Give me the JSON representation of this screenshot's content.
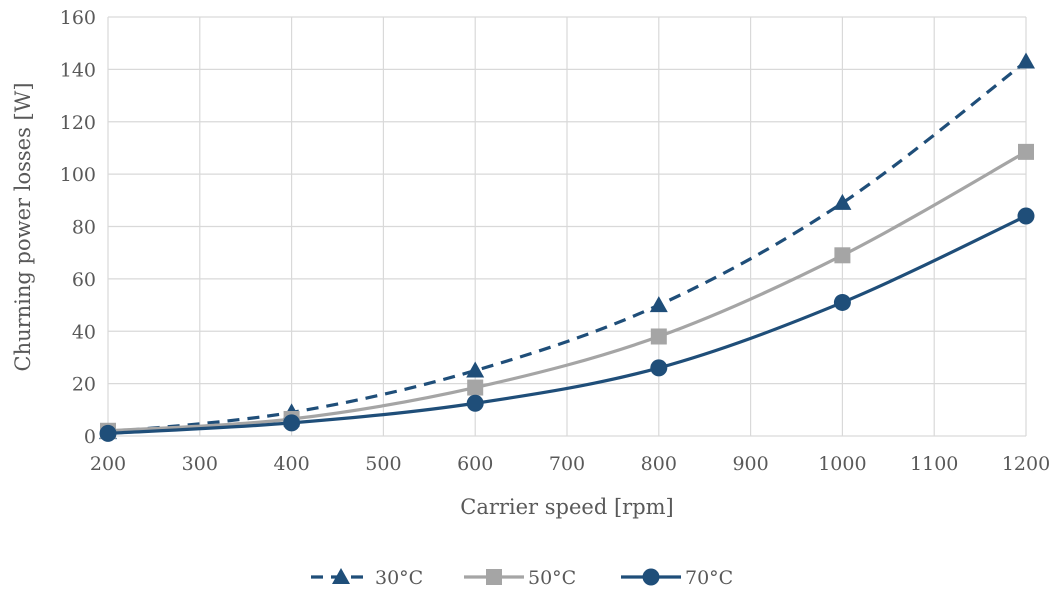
{
  "chart_data": {
    "type": "line",
    "xlabel": "Carrier speed [rpm]",
    "ylabel": "Churning power losses [W]",
    "xlim": [
      200,
      1200
    ],
    "ylim": [
      0,
      160
    ],
    "xticks": [
      200,
      300,
      400,
      500,
      600,
      700,
      800,
      900,
      1000,
      1100,
      1200
    ],
    "yticks": [
      0,
      20,
      40,
      60,
      80,
      100,
      120,
      140,
      160
    ],
    "grid": true,
    "legend_position": "bottom",
    "x": [
      200,
      400,
      600,
      800,
      1000,
      1200
    ],
    "series": [
      {
        "name": "30°C",
        "values": [
          1.5,
          9,
          25,
          50,
          89,
          143
        ],
        "color": "#1F4E79",
        "marker": "triangle",
        "dash": "dashed"
      },
      {
        "name": "50°C",
        "values": [
          2,
          6.5,
          18.5,
          38,
          69,
          108.5
        ],
        "color": "#A5A5A5",
        "marker": "square",
        "dash": "solid"
      },
      {
        "name": "70°C",
        "values": [
          1,
          5,
          12.5,
          26,
          51,
          84
        ],
        "color": "#1F4E79",
        "marker": "circle",
        "dash": "solid"
      }
    ]
  }
}
